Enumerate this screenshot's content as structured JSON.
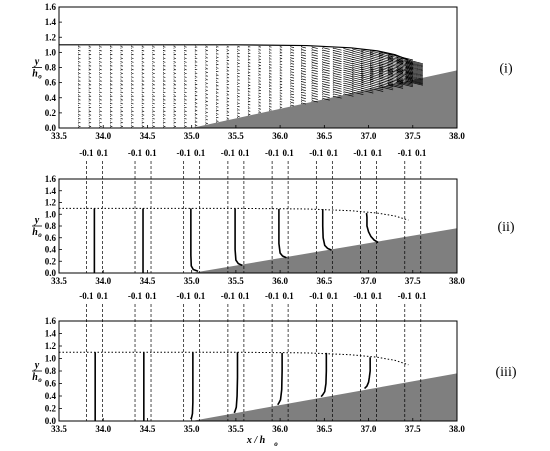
{
  "chart_data": {
    "type": "line",
    "x_axis": {
      "label": "x / h",
      "label_subscript": "o",
      "range": [
        33.5,
        38.0
      ],
      "ticks": [
        "33.5",
        "34.0",
        "34.5",
        "35.0",
        "35.5",
        "36.0",
        "36.5",
        "37.0",
        "37.5",
        "38.0"
      ]
    },
    "y_axis": {
      "label": "y",
      "label_denominator": "h",
      "label_subscript": "o",
      "range": [
        0,
        1.6
      ],
      "ticks": [
        "0.0",
        "0.2",
        "0.4",
        "0.6",
        "0.8",
        "1.0",
        "1.2",
        "1.4",
        "1.6"
      ]
    },
    "beach": {
      "toe_x": 35.0,
      "slope": 0.254,
      "color": "#7f7f7f"
    },
    "free_surface": [
      [
        33.5,
        1.1
      ],
      [
        35.5,
        1.1
      ],
      [
        36.3,
        1.09
      ],
      [
        36.8,
        1.06
      ],
      [
        37.1,
        1.02
      ],
      [
        37.3,
        0.97
      ],
      [
        37.45,
        0.9
      ]
    ],
    "panels": [
      {
        "label": "(i)",
        "kind": "velocity-vectors",
        "vector_columns_x": [
          33.72,
          33.84,
          33.96,
          34.08,
          34.2,
          34.32,
          34.44,
          34.56,
          34.68,
          34.8,
          34.92,
          35.04,
          35.16,
          35.28,
          35.4,
          35.52,
          35.64,
          35.76,
          35.88,
          36.0,
          36.12,
          36.24,
          36.36,
          36.48,
          36.6,
          36.72,
          36.82,
          36.92,
          37.02,
          37.12,
          37.22,
          37.32,
          37.42
        ]
      },
      {
        "label": "(ii)",
        "kind": "velocity-profiles",
        "ref_ticks": [
          "-0.1",
          "0.1"
        ],
        "stations": [
          {
            "x": 33.9,
            "surface": 1.1,
            "profile_y": [
              0.0,
              0.2,
              0.4,
              0.6,
              0.8,
              1.0,
              1.1
            ],
            "profile_u": [
              0.0,
              0.0,
              0.0,
              0.0,
              0.0,
              0.0,
              0.0
            ]
          },
          {
            "x": 34.45,
            "surface": 1.1,
            "profile_y": [
              0.0,
              0.2,
              0.4,
              0.6,
              0.8,
              1.0,
              1.1
            ],
            "profile_u": [
              0.0,
              0.0,
              0.0,
              0.0,
              0.0,
              0.0,
              0.0
            ]
          },
          {
            "x": 35.0,
            "surface": 1.1,
            "profile_y": [
              0.03,
              0.06,
              0.12,
              0.3,
              0.6,
              0.9,
              1.1
            ],
            "profile_u": [
              0.08,
              0.02,
              -0.005,
              -0.01,
              -0.01,
              -0.01,
              -0.01
            ]
          },
          {
            "x": 35.5,
            "surface": 1.1,
            "profile_y": [
              0.13,
              0.16,
              0.22,
              0.4,
              0.7,
              1.0,
              1.1
            ],
            "profile_u": [
              0.08,
              0.03,
              0.0,
              -0.01,
              -0.01,
              -0.01,
              -0.01
            ]
          },
          {
            "x": 36.0,
            "surface": 1.1,
            "profile_y": [
              0.26,
              0.29,
              0.34,
              0.5,
              0.8,
              1.0,
              1.09
            ],
            "profile_u": [
              0.08,
              0.03,
              0.0,
              -0.015,
              -0.015,
              -0.015,
              -0.015
            ]
          },
          {
            "x": 36.5,
            "surface": 1.09,
            "profile_y": [
              0.39,
              0.42,
              0.47,
              0.6,
              0.8,
              1.0,
              1.09
            ],
            "profile_u": [
              0.09,
              0.04,
              0.005,
              -0.015,
              -0.02,
              -0.02,
              -0.02
            ]
          },
          {
            "x": 37.0,
            "surface": 1.02,
            "profile_y": [
              0.52,
              0.56,
              0.62,
              0.7,
              0.8,
              0.95,
              1.02
            ],
            "profile_u": [
              0.12,
              0.07,
              0.03,
              0.0,
              -0.02,
              -0.02,
              -0.025
            ]
          },
          {
            "x": 37.5,
            "surface": 0.9,
            "profile_y": [],
            "profile_u": []
          }
        ]
      },
      {
        "label": "(iii)",
        "kind": "velocity-profiles",
        "ref_ticks": [
          "-0.1",
          "0.1"
        ],
        "stations": [
          {
            "x": 33.9,
            "surface": 1.1,
            "profile_y": [
              0.0,
              0.2,
              0.4,
              0.6,
              0.8,
              1.0,
              1.1
            ],
            "profile_u": [
              0.01,
              0.01,
              0.01,
              0.01,
              0.01,
              0.01,
              0.01
            ]
          },
          {
            "x": 34.45,
            "surface": 1.1,
            "profile_y": [
              0.0,
              0.2,
              0.4,
              0.6,
              0.8,
              1.0,
              1.1
            ],
            "profile_u": [
              0.01,
              0.01,
              0.01,
              0.01,
              0.01,
              0.01,
              0.01
            ]
          },
          {
            "x": 35.0,
            "surface": 1.1,
            "profile_y": [
              0.03,
              0.06,
              0.12,
              0.3,
              0.6,
              0.9,
              1.1
            ],
            "profile_u": [
              -0.01,
              0.0,
              0.01,
              0.015,
              0.015,
              0.015,
              0.015
            ]
          },
          {
            "x": 35.5,
            "surface": 1.1,
            "profile_y": [
              0.13,
              0.16,
              0.22,
              0.4,
              0.7,
              1.0,
              1.1
            ],
            "profile_u": [
              -0.02,
              -0.01,
              0.005,
              0.015,
              0.02,
              0.02,
              0.02
            ]
          },
          {
            "x": 36.0,
            "surface": 1.1,
            "profile_y": [
              0.26,
              0.29,
              0.34,
              0.5,
              0.8,
              1.0,
              1.09
            ],
            "profile_u": [
              -0.03,
              -0.015,
              0.005,
              0.02,
              0.025,
              0.025,
              0.025
            ]
          },
          {
            "x": 36.5,
            "surface": 1.09,
            "profile_y": [
              0.39,
              0.42,
              0.47,
              0.6,
              0.8,
              1.0,
              1.09
            ],
            "profile_u": [
              -0.04,
              -0.02,
              0.005,
              0.02,
              0.025,
              0.025,
              0.025
            ]
          },
          {
            "x": 37.0,
            "surface": 1.02,
            "profile_y": [
              0.52,
              0.56,
              0.62,
              0.7,
              0.8,
              0.95,
              1.02
            ],
            "profile_u": [
              -0.05,
              -0.02,
              0.0,
              0.01,
              0.02,
              0.02,
              0.02
            ]
          },
          {
            "x": 37.5,
            "surface": 0.9,
            "profile_y": [],
            "profile_u": []
          }
        ]
      }
    ]
  }
}
